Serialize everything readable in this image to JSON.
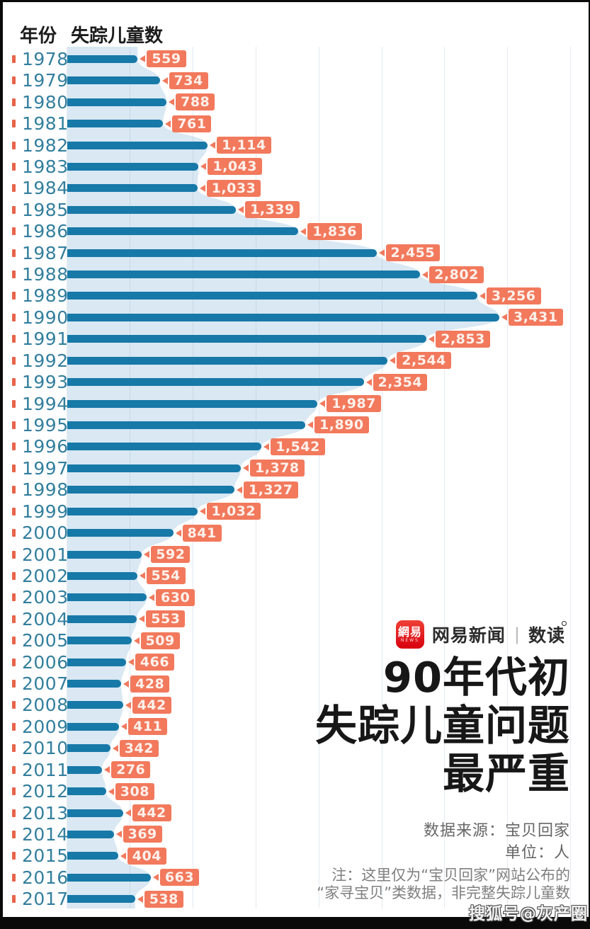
{
  "header": {
    "col_year": "年份",
    "col_value": "失踪儿童数"
  },
  "chart_data": {
    "type": "bar",
    "orientation": "horizontal",
    "title": "90年代初失踪儿童问题最严重",
    "xlabel": "失踪儿童数",
    "ylabel": "年份",
    "xlim": [
      0,
      4000
    ],
    "gridline_step": 500,
    "grid": true,
    "categories": [
      "1978",
      "1979",
      "1980",
      "1981",
      "1982",
      "1983",
      "1984",
      "1985",
      "1986",
      "1987",
      "1988",
      "1989",
      "1990",
      "1991",
      "1992",
      "1993",
      "1994",
      "1995",
      "1996",
      "1997",
      "1998",
      "1999",
      "2000",
      "2001",
      "2002",
      "2003",
      "2004",
      "2005",
      "2006",
      "2007",
      "2008",
      "2009",
      "2010",
      "2011",
      "2012",
      "2013",
      "2014",
      "2015",
      "2016",
      "2017"
    ],
    "values": [
      559,
      734,
      788,
      761,
      1114,
      1043,
      1033,
      1339,
      1836,
      2455,
      2802,
      3256,
      3431,
      2853,
      2544,
      2354,
      1987,
      1890,
      1542,
      1378,
      1327,
      1032,
      841,
      592,
      554,
      630,
      553,
      509,
      466,
      428,
      442,
      411,
      342,
      276,
      308,
      442,
      369,
      404,
      663,
      538
    ],
    "value_labels": [
      "559",
      "734",
      "788",
      "761",
      "1,114",
      "1,043",
      "1,033",
      "1,339",
      "1,836",
      "2,455",
      "2,802",
      "3,256",
      "3,431",
      "2,853",
      "2,544",
      "2,354",
      "1,987",
      "1,890",
      "1,542",
      "1,378",
      "1,327",
      "1,032",
      "841",
      "592",
      "554",
      "630",
      "553",
      "509",
      "466",
      "428",
      "442",
      "411",
      "342",
      "276",
      "308",
      "442",
      "369",
      "404",
      "663",
      "538"
    ]
  },
  "colors": {
    "bar": "#1779a8",
    "area": "#d9e8f3",
    "label_bg": "#f2795c",
    "label_text": "#fdf1ec",
    "year_text": "#337f9e",
    "year_tick": "#e8644a"
  },
  "branding": {
    "logo_text": "網易",
    "logo_sub": "NEWS",
    "brand": "网易新闻",
    "divider": "|",
    "section": "数读"
  },
  "title": {
    "lines": [
      "90年代初",
      "失踪儿童问题",
      "最严重"
    ]
  },
  "source": {
    "label": "数据来源：宝贝回家",
    "unit": "单位：人"
  },
  "note": {
    "lines": [
      "注：这里仅为“宝贝回家”网站公布的",
      "“家寻宝贝”类数据，非完整失踪儿童数"
    ]
  },
  "watermark": "搜狐号@灰产圈"
}
